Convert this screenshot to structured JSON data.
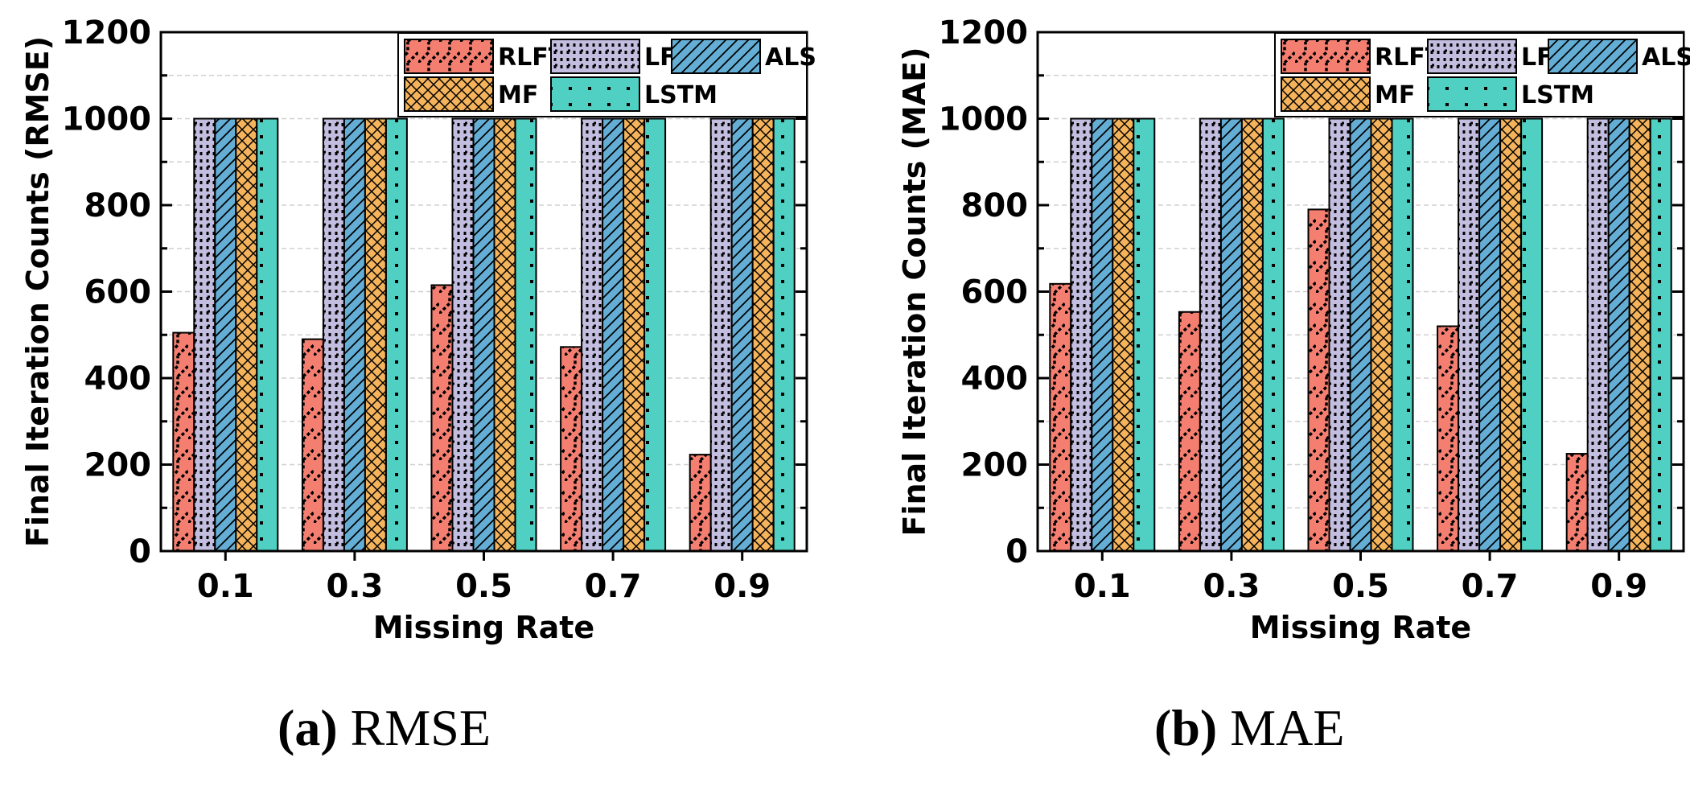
{
  "chart_data": [
    {
      "type": "bar",
      "panel_label": "(a)",
      "caption": "RMSE",
      "xlabel": "Missing Rate",
      "ylabel": "Final Iteration Counts (RMSE)",
      "categories": [
        "0.1",
        "0.3",
        "0.5",
        "0.7",
        "0.9"
      ],
      "ylim": [
        0,
        1200
      ],
      "yticks": [
        0,
        200,
        400,
        600,
        800,
        1000,
        1200
      ],
      "grid": true,
      "legend_position": "top-right",
      "series": [
        {
          "name": "RLFT",
          "values": [
            505,
            490,
            615,
            472,
            223
          ]
        },
        {
          "name": "LFT",
          "values": [
            1000,
            1000,
            1000,
            1000,
            1000
          ]
        },
        {
          "name": "ALS",
          "values": [
            1000,
            1000,
            1000,
            1000,
            1000
          ]
        },
        {
          "name": "MF",
          "values": [
            1000,
            1000,
            1000,
            1000,
            1000
          ]
        },
        {
          "name": "LSTM",
          "values": [
            1000,
            1000,
            1000,
            1000,
            1000
          ]
        }
      ]
    },
    {
      "type": "bar",
      "panel_label": "(b)",
      "caption": "MAE",
      "xlabel": "Missing Rate",
      "ylabel": "Final Iteration Counts (MAE)",
      "categories": [
        "0.1",
        "0.3",
        "0.5",
        "0.7",
        "0.9"
      ],
      "ylim": [
        0,
        1200
      ],
      "yticks": [
        0,
        200,
        400,
        600,
        800,
        1000,
        1200
      ],
      "grid": true,
      "legend_position": "top-right",
      "series": [
        {
          "name": "RLFT",
          "values": [
            618,
            553,
            790,
            520,
            225
          ]
        },
        {
          "name": "LFT",
          "values": [
            1000,
            1000,
            1000,
            1000,
            1000
          ]
        },
        {
          "name": "ALS",
          "values": [
            1000,
            1000,
            1000,
            1000,
            1000
          ]
        },
        {
          "name": "MF",
          "values": [
            1000,
            1000,
            1000,
            1000,
            1000
          ]
        },
        {
          "name": "LSTM",
          "values": [
            1000,
            1000,
            1000,
            1000,
            1000
          ]
        }
      ]
    }
  ],
  "series_colors": {
    "RLFT": "#f47f71",
    "LFT": "#c3bedf",
    "ALS": "#64aed6",
    "MF": "#f5b45c",
    "LSTM": "#4fd0c2"
  },
  "series_patterns": {
    "RLFT": "zigzag-dash",
    "LFT": "dotted-vertical",
    "ALS": "diagonal-hatch",
    "MF": "crosshatch",
    "LSTM": "sparse-dots"
  },
  "captions": {
    "a_letter": "(a)",
    "a_text": "RMSE",
    "b_letter": "(b)",
    "b_text": "MAE"
  }
}
